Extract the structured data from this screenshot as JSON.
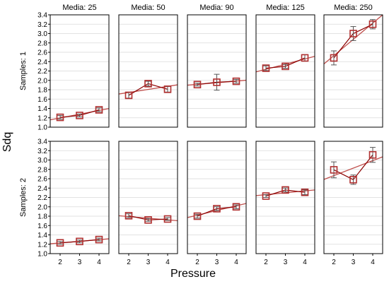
{
  "chart_data": {
    "type": "line",
    "ylabel": "Sdq",
    "xlabel": "Pressure",
    "column_labels": [
      "Media: 25",
      "Media: 50",
      "Media: 90",
      "Media: 125",
      "Media: 250"
    ],
    "row_labels": [
      "Samples: 1",
      "Samples: 2"
    ],
    "x": [
      2,
      3,
      4
    ],
    "ylim": [
      1.0,
      3.4
    ],
    "yticks": [
      "1.0",
      "1.2",
      "1.4",
      "1.6",
      "1.8",
      "2.0",
      "2.2",
      "2.4",
      "2.6",
      "2.8",
      "3.0",
      "3.2",
      "3.4"
    ],
    "xticks": [
      "2",
      "3",
      "4"
    ],
    "grid": true,
    "colors": {
      "data": "#8b0000",
      "fit": "#c0504d",
      "marker": "#b03030",
      "grid": "#d9d9d9"
    },
    "panels": [
      [
        {
          "y": [
            1.21,
            1.25,
            1.37
          ],
          "err": [
            0.04,
            0.03,
            0.04
          ]
        },
        {
          "y": [
            1.68,
            1.93,
            1.81
          ],
          "err": [
            0.06,
            0.05,
            0.06
          ]
        },
        {
          "y": [
            1.91,
            1.96,
            1.98
          ],
          "err": [
            0.03,
            0.17,
            0.04
          ]
        },
        {
          "y": [
            2.26,
            2.3,
            2.48
          ],
          "err": [
            0.05,
            0.04,
            0.07
          ]
        },
        {
          "y": [
            2.48,
            3.0,
            3.2
          ],
          "err": [
            0.15,
            0.15,
            0.1
          ]
        }
      ],
      [
        {
          "y": [
            1.23,
            1.26,
            1.3
          ],
          "err": [
            0.03,
            0.03,
            0.03
          ]
        },
        {
          "y": [
            1.81,
            1.72,
            1.74
          ],
          "err": [
            0.04,
            0.03,
            0.03
          ]
        },
        {
          "y": [
            1.8,
            1.96,
            2.0
          ],
          "err": [
            0.04,
            0.04,
            0.04
          ]
        },
        {
          "y": [
            2.23,
            2.36,
            2.31
          ],
          "err": [
            0.03,
            0.04,
            0.05
          ]
        },
        {
          "y": [
            2.79,
            2.58,
            3.11
          ],
          "err": [
            0.17,
            0.1,
            0.16
          ]
        }
      ]
    ]
  }
}
